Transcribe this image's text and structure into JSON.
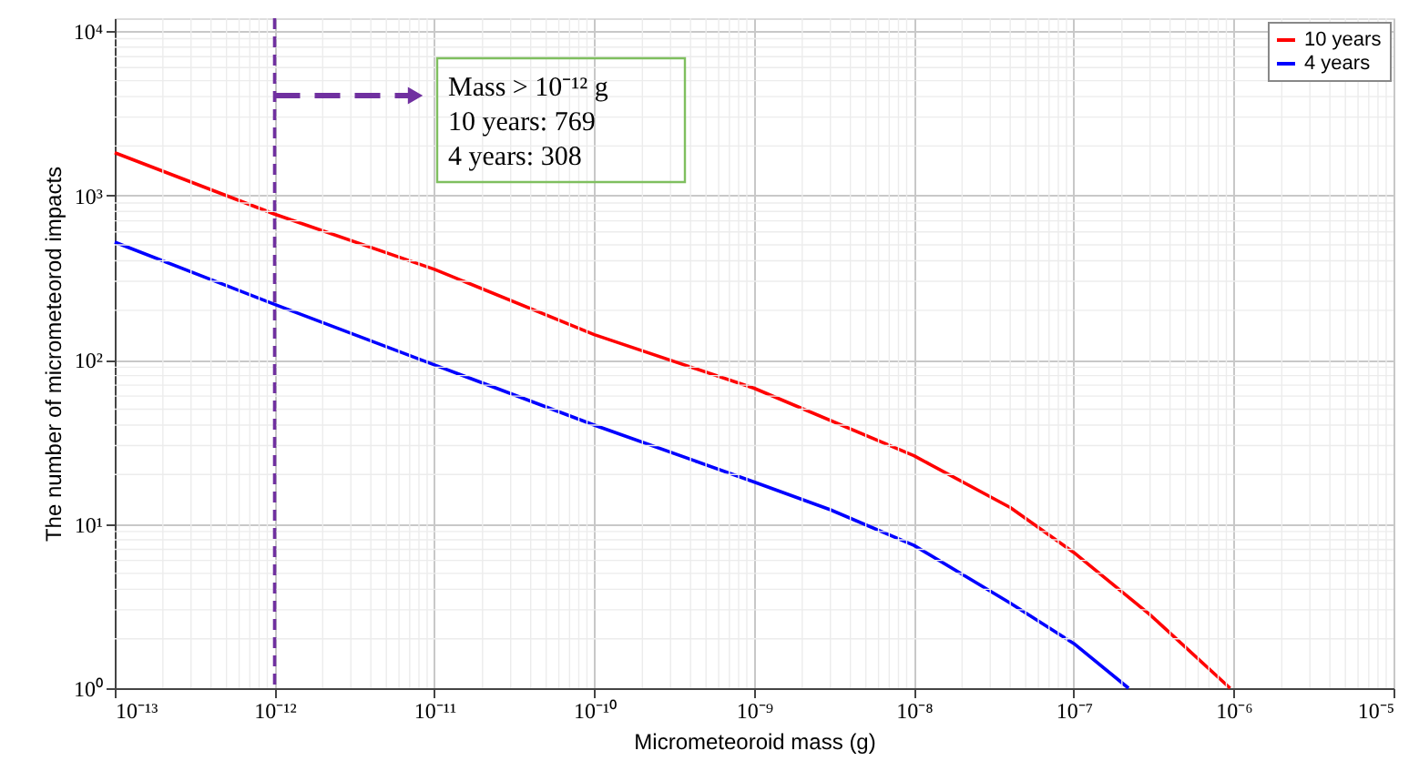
{
  "chart_data": {
    "type": "line",
    "xlabel": "Micrometeoroid mass (g)",
    "ylabel": "The number of micrometeorod impacts",
    "log": "xy",
    "grid": true,
    "legend": "top right",
    "line_style": "solid",
    "xlim": [
      1e-13,
      1e-05
    ],
    "ylim": [
      1,
      12000
    ],
    "xticks": [
      {
        "value": 1e-13,
        "label": "10⁻¹³"
      },
      {
        "value": 1e-12,
        "label": "10⁻¹²"
      },
      {
        "value": 1e-11,
        "label": "10⁻¹¹"
      },
      {
        "value": 1e-10,
        "label": "10⁻¹⁰"
      },
      {
        "value": 1e-09,
        "label": "10⁻⁹"
      },
      {
        "value": 1e-08,
        "label": "10⁻⁸"
      },
      {
        "value": 1e-07,
        "label": "10⁻⁷"
      },
      {
        "value": 1e-06,
        "label": "10⁻⁶"
      },
      {
        "value": 1e-05,
        "label": "10⁻⁵"
      }
    ],
    "yticks": [
      {
        "value": 1,
        "label": "10⁰"
      },
      {
        "value": 10,
        "label": "10¹"
      },
      {
        "value": 100,
        "label": "10²"
      },
      {
        "value": 1000,
        "label": "10³"
      },
      {
        "value": 10000,
        "label": "10⁴"
      }
    ],
    "series": [
      {
        "name": "10 years",
        "color": "#ff0000",
        "x": [
          1e-13,
          1e-12,
          1e-11,
          1e-10,
          1e-09,
          1e-08,
          4e-08,
          1e-07,
          3e-07,
          9.5e-07
        ],
        "values": [
          1820,
          769,
          355,
          142,
          67,
          26,
          12.6,
          6.7,
          2.8,
          1
        ]
      },
      {
        "name": "4 years",
        "color": "#0000ff",
        "x": [
          1e-13,
          1e-12,
          1e-11,
          1e-10,
          1e-09,
          3e-09,
          1e-08,
          4e-08,
          1e-07,
          2.2e-07
        ],
        "values": [
          520,
          217,
          93,
          40,
          18,
          12.2,
          7.4,
          3.3,
          1.87,
          1
        ]
      }
    ],
    "ref_lines": [
      {
        "axis": "x",
        "value": 1e-12,
        "color": "#7030a0",
        "line_style": "dashed"
      }
    ],
    "annotations": [
      "Mass > 10⁻¹² g",
      "10 years: 769",
      "4   years: 308"
    ]
  }
}
